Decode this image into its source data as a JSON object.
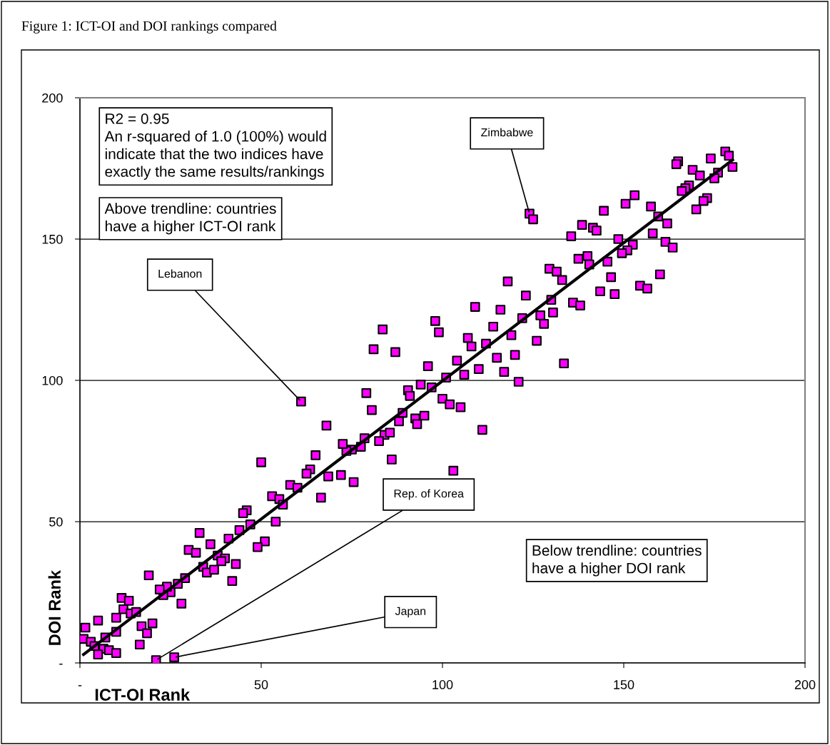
{
  "chart_data": {
    "type": "scatter",
    "title": "Figure 1: ICT-OI and DOI rankings compared",
    "xlabel": "ICT-OI Rank",
    "ylabel": "DOI Rank",
    "xlim": [
      0,
      200
    ],
    "ylim": [
      0,
      200
    ],
    "xticks": [
      {
        "value": 0,
        "label": "-"
      },
      50,
      100,
      150,
      200
    ],
    "yticks": [
      {
        "value": 0,
        "label": "-"
      },
      50,
      100,
      150,
      200
    ],
    "grid": "y",
    "legend": false,
    "marker": "square",
    "annotations": [
      "R2 = 0.95\nAn r-squared of 1.0 (100%) would\nindicate that the two indices have\nexactly the same results/rankings",
      "Above trendline: countries\nhave a higher ICT-OI rank",
      "Below trendline: countries\nhave a higher DOI rank",
      {
        "text": "Zimbabwe",
        "x": 124,
        "y": 159
      },
      {
        "text": "Lebanon",
        "x": 61,
        "y": 92.5
      },
      {
        "text": "Rep. of Korea",
        "x": 21,
        "y": 1
      },
      {
        "text": "Japan",
        "x": 26,
        "y": 2
      }
    ],
    "series": [
      {
        "color": "#ff00ff",
        "x": [
          50,
          53,
          55,
          56,
          54,
          46,
          45,
          47,
          44,
          41,
          51,
          49,
          33,
          36,
          30,
          32,
          38,
          40,
          39,
          34,
          35,
          37,
          43,
          42,
          29,
          27,
          25,
          23,
          24,
          22,
          19,
          28,
          11.5,
          13.5,
          12,
          14,
          15.5,
          10,
          5,
          10,
          7,
          17,
          20,
          18.5,
          16.5,
          1.5,
          1,
          3,
          4,
          6.5,
          5,
          8,
          10,
          21,
          26,
          124,
          125,
          129.5,
          118,
          123,
          109,
          116,
          130,
          130.5,
          127,
          128,
          122,
          126,
          98,
          99,
          83.5,
          81,
          87,
          114,
          107,
          108,
          112,
          119,
          120,
          115,
          117,
          121,
          110,
          104,
          106,
          101,
          96,
          94,
          97,
          90.5,
          91,
          100,
          102,
          105,
          111,
          103,
          79,
          80.5,
          68,
          89,
          88,
          92.5,
          93,
          95,
          84,
          85.5,
          82.5,
          78.5,
          77.5,
          75,
          73.5,
          72.5,
          86,
          65,
          68.5,
          72,
          75.5,
          66.5,
          61,
          63.5,
          62.5,
          58,
          60,
          178,
          179,
          180,
          174,
          176,
          175,
          165,
          164.5,
          169,
          171,
          168,
          167,
          166,
          173,
          172,
          170,
          153,
          150.5,
          157.5,
          144.5,
          159.5,
          162,
          138.5,
          141.5,
          142.5,
          135.5,
          148.5,
          158,
          161.5,
          163.5,
          152.5,
          151,
          149.5,
          137.5,
          140,
          140.5,
          145.5,
          131.5,
          133,
          146.5,
          143.5,
          147.5,
          160,
          154.5,
          156.5,
          136,
          138,
          133.5
        ],
        "values": [
          71,
          59,
          58,
          56,
          50,
          54,
          53,
          49,
          47,
          44,
          43,
          41,
          46,
          42,
          40,
          39,
          38,
          37,
          36,
          34,
          32,
          33,
          35,
          29,
          30,
          28,
          25,
          24,
          27,
          26,
          31,
          21,
          23,
          22,
          19,
          17.5,
          18,
          16,
          15,
          11,
          9,
          13,
          14,
          10.5,
          6.5,
          12.5,
          8.5,
          7.5,
          6,
          5,
          3,
          4.5,
          3.5,
          1,
          2,
          159,
          157,
          139.5,
          135,
          130,
          126,
          125,
          128.5,
          124,
          123,
          120,
          122,
          114,
          121,
          117,
          118,
          111,
          110,
          119,
          115,
          112,
          113,
          116,
          109,
          108,
          103,
          99.5,
          104,
          107,
          102,
          101,
          105,
          98.5,
          97.5,
          96.5,
          94.5,
          93.5,
          91.5,
          90.5,
          82.5,
          68,
          95.5,
          89.5,
          84,
          88.5,
          85.5,
          86.5,
          84.5,
          87.5,
          80.7,
          81.5,
          78.5,
          79.5,
          76.5,
          75.5,
          75,
          77.5,
          72,
          73.5,
          66,
          66.5,
          64,
          58.5,
          92.5,
          68.5,
          67,
          63,
          62,
          181,
          179.5,
          175.5,
          178.5,
          173.5,
          171.5,
          177.5,
          176.5,
          174.5,
          172.5,
          169,
          168,
          167,
          164.5,
          163.5,
          160.5,
          165.5,
          162.5,
          161.5,
          160,
          158,
          155.5,
          155,
          154,
          153,
          151,
          150,
          152,
          149,
          147,
          148,
          146,
          145,
          143,
          144,
          141,
          142,
          138.5,
          135.5,
          136.5,
          131.5,
          130.5,
          137.5,
          133.5,
          132.5,
          127.5,
          126.5,
          106
        ]
      },
      {
        "type": "line",
        "color": "#000000",
        "marker": "none",
        "line_style": "solid",
        "x": [
          1,
          180
        ],
        "values": [
          3,
          178
        ]
      }
    ]
  }
}
